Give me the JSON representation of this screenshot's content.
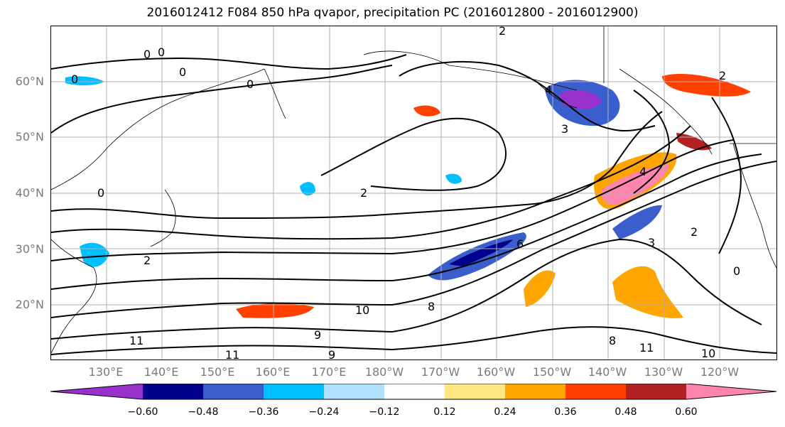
{
  "title": "2016012412 F084 850 hPa qvapor, precipitation PC (2016012800 - 2016012900)",
  "latitude_labels": [
    "60°N",
    "50°N",
    "40°N",
    "30°N",
    "20°N"
  ],
  "longitude_labels": [
    "130°E",
    "140°E",
    "150°E",
    "160°E",
    "170°E",
    "180°W",
    "170°W",
    "160°W",
    "150°W",
    "140°W",
    "130°W",
    "120°W"
  ],
  "contour_labels": [
    "0",
    "0",
    "0",
    "0",
    "0",
    "0",
    "0",
    "2",
    "2",
    "2",
    "2",
    "2",
    "3",
    "3",
    "4",
    "4",
    "6",
    "8",
    "8",
    "9",
    "9",
    "10",
    "10",
    "11",
    "11",
    "11"
  ],
  "colorbar": {
    "tick_labels": [
      "−0.60",
      "−0.48",
      "−0.36",
      "−0.24",
      "−0.12",
      "0.12",
      "0.24",
      "0.36",
      "0.48",
      "0.60"
    ],
    "colors": [
      "#9932cc",
      "#00008b",
      "#3a5fcd",
      "#00bfff",
      "#b0e2ff",
      "#ffffff",
      "#ffe680",
      "#ffa500",
      "#ff4000",
      "#b22222",
      "#ff85b0"
    ]
  }
}
